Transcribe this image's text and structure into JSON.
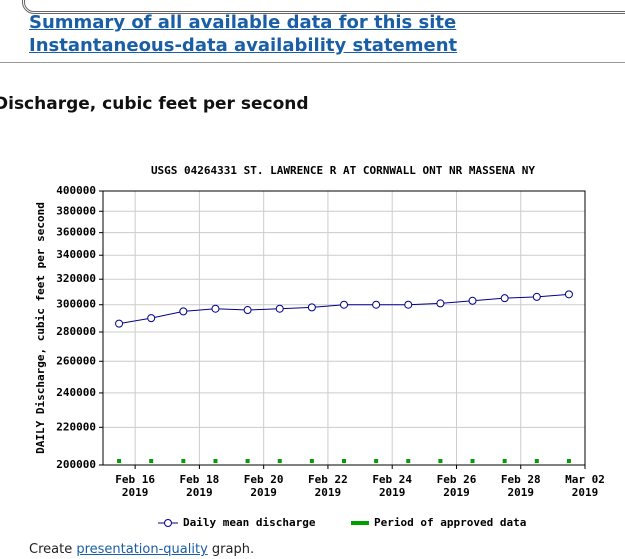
{
  "links": [
    "Summary of all available data for this site",
    "Instantaneous-data availability statement"
  ],
  "section_title": "Discharge, cubic feet per second",
  "chart_data": {
    "type": "line",
    "title": "USGS 04264331 ST. LAWRENCE R AT CORNWALL ONT NR MASSENA NY",
    "y_label": "DAILY Discharge, cubic feet per second",
    "log_scale_y": true,
    "grid": true,
    "x": [
      "2019-02-15",
      "2019-02-16",
      "2019-02-17",
      "2019-02-18",
      "2019-02-19",
      "2019-02-20",
      "2019-02-21",
      "2019-02-22",
      "2019-02-23",
      "2019-02-24",
      "2019-02-25",
      "2019-02-26",
      "2019-02-27",
      "2019-02-28",
      "2019-03-01"
    ],
    "series": [
      {
        "name": "Daily mean discharge",
        "color": "#00008b",
        "values": [
          286000,
          290000,
          295000,
          297000,
          296000,
          297000,
          298000,
          300000,
          300000,
          300000,
          301000,
          303000,
          305000,
          306000,
          308000
        ]
      }
    ],
    "approved": {
      "name": "Period of approved data",
      "color": "#00a000"
    },
    "xlim": [
      "2019-02-15",
      "2019-03-02"
    ],
    "xticks": [
      {
        "value": "2019-02-16",
        "label": [
          "Feb 16",
          "2019"
        ]
      },
      {
        "value": "2019-02-18",
        "label": [
          "Feb 18",
          "2019"
        ]
      },
      {
        "value": "2019-02-20",
        "label": [
          "Feb 20",
          "2019"
        ]
      },
      {
        "value": "2019-02-22",
        "label": [
          "Feb 22",
          "2019"
        ]
      },
      {
        "value": "2019-02-24",
        "label": [
          "Feb 24",
          "2019"
        ]
      },
      {
        "value": "2019-02-26",
        "label": [
          "Feb 26",
          "2019"
        ]
      },
      {
        "value": "2019-02-28",
        "label": [
          "Feb 28",
          "2019"
        ]
      },
      {
        "value": "2019-03-02",
        "label": [
          "Mar 02",
          "2019"
        ]
      }
    ],
    "ylim": [
      200000,
      400000
    ],
    "yticks": [
      200000,
      220000,
      240000,
      260000,
      280000,
      300000,
      320000,
      340000,
      360000,
      380000,
      400000
    ]
  },
  "footer": {
    "before": "Create ",
    "link": "presentation-quality",
    "after": " graph."
  }
}
